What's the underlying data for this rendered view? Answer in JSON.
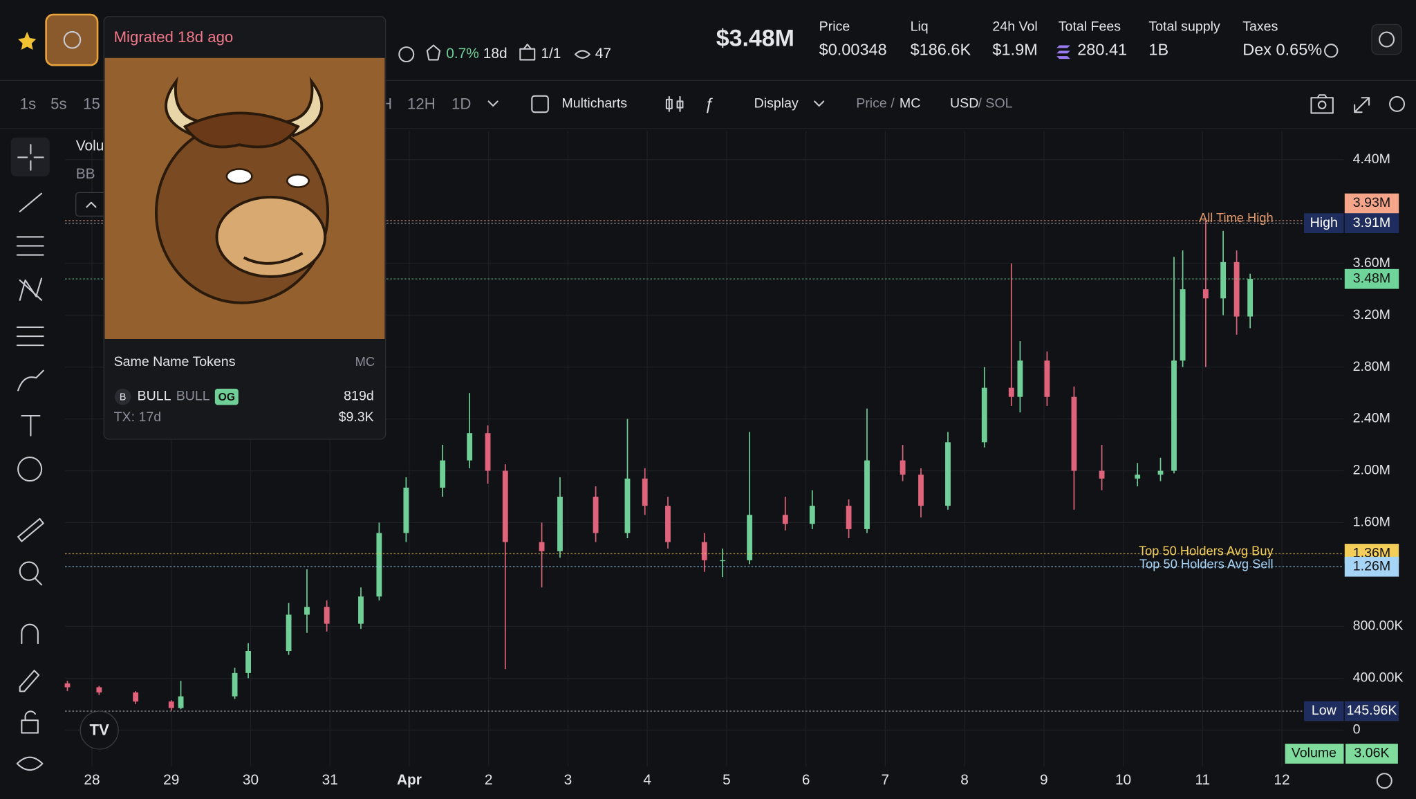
{
  "header": {
    "market_cap": "$3.48M",
    "stats": [
      {
        "label": "Price",
        "value": "$0.00348"
      },
      {
        "label": "Liq",
        "value": "$186.6K"
      },
      {
        "label": "24h Vol",
        "value": "$1.9M"
      },
      {
        "label": "Total Fees",
        "value": "280.41"
      },
      {
        "label": "Total supply",
        "value": "1B"
      },
      {
        "label": "Taxes",
        "value": "Dex 0.65%"
      }
    ],
    "token_stats": {
      "top_holders": "0.7%",
      "age": "18d",
      "ratio": "1/1",
      "watchers": "47"
    }
  },
  "toolbar": {
    "intervals": [
      "1s",
      "5s",
      "15",
      "H",
      "12H",
      "1D"
    ],
    "multicharts": "Multicharts",
    "display": "Display",
    "price": "Price /",
    "mc": "MC",
    "usd": "USD",
    "sol": "/ SOL"
  },
  "legend": [
    "Volu",
    "BB"
  ],
  "popup": {
    "title": "Migrated 18d ago",
    "section": "Same Name Tokens",
    "column": "MC",
    "token": {
      "avatar": "B",
      "symbol": "BULL",
      "name": "BULL",
      "badge": "OG",
      "age": "819d",
      "tx": "TX: 17d",
      "mc": "$9.3K"
    }
  },
  "volume_badge": {
    "label": "Volume",
    "value": "3.06K"
  },
  "chart_data": {
    "type": "candlestick",
    "xlim": [
      -0.34,
      15.78
    ],
    "xticks": [
      {
        "value": 0,
        "label": "28"
      },
      {
        "value": 1,
        "label": "29"
      },
      {
        "value": 2,
        "label": "30"
      },
      {
        "value": 3,
        "label": "31"
      },
      {
        "value": 4,
        "label": "Apr"
      },
      {
        "value": 5,
        "label": "2"
      },
      {
        "value": 6,
        "label": "3"
      },
      {
        "value": 7,
        "label": "4"
      },
      {
        "value": 8,
        "label": "5"
      },
      {
        "value": 9,
        "label": "6"
      },
      {
        "value": 10,
        "label": "7"
      },
      {
        "value": 11,
        "label": "8"
      },
      {
        "value": 12,
        "label": "9"
      },
      {
        "value": 13,
        "label": "10"
      },
      {
        "value": 14,
        "label": "11"
      },
      {
        "value": 15,
        "label": "12"
      }
    ],
    "ylim": [
      -0.28,
      4.62
    ],
    "yticks": [
      {
        "value": 4.4,
        "label": "4.40M"
      },
      {
        "value": 3.6,
        "label": "3.60M"
      },
      {
        "value": 3.2,
        "label": "3.20M"
      },
      {
        "value": 2.8,
        "label": "2.80M"
      },
      {
        "value": 2.4,
        "label": "2.40M"
      },
      {
        "value": 2.0,
        "label": "2.00M"
      },
      {
        "value": 1.6,
        "label": "1.60M"
      },
      {
        "value": 0.8,
        "label": "800.00K"
      },
      {
        "value": 0.4,
        "label": "400.00K"
      },
      0
    ],
    "grid": true,
    "up_color": "#6fcf97",
    "down_color": "#e0637c",
    "x": [
      -0.31,
      0.09,
      0.55,
      1.0,
      1.12,
      1.8,
      1.97,
      2.48,
      2.71,
      2.96,
      3.39,
      3.62,
      3.96,
      4.42,
      4.76,
      4.99,
      5.21,
      5.67,
      5.9,
      6.35,
      6.75,
      6.97,
      7.26,
      7.72,
      7.95,
      8.29,
      8.74,
      9.08,
      9.54,
      9.77,
      10.22,
      10.45,
      10.79,
      11.25,
      11.59,
      11.7,
      12.04,
      12.38,
      12.73,
      13.18,
      13.47,
      13.64,
      13.75,
      14.04,
      14.26,
      14.43,
      14.6
    ],
    "open": [
      0.36,
      0.33,
      0.29,
      0.22,
      0.17,
      0.26,
      0.44,
      0.61,
      0.89,
      0.95,
      0.82,
      1.03,
      1.52,
      1.87,
      2.08,
      2.29,
      2.0,
      1.45,
      1.38,
      1.8,
      1.52,
      1.94,
      1.73,
      1.45,
      1.31,
      1.31,
      1.66,
      1.59,
      1.73,
      1.55,
      2.08,
      1.97,
      1.73,
      2.22,
      2.64,
      2.57,
      2.85,
      2.57,
      2.0,
      1.94,
      1.97,
      2.0,
      2.85,
      3.4,
      3.33,
      3.61,
      3.19
    ],
    "high": [
      0.38,
      0.34,
      0.3,
      0.23,
      0.38,
      0.48,
      0.67,
      0.98,
      1.24,
      1.0,
      1.1,
      1.6,
      1.95,
      2.2,
      2.6,
      2.35,
      2.05,
      1.6,
      1.95,
      1.88,
      2.4,
      2.02,
      1.8,
      1.52,
      1.4,
      2.3,
      1.8,
      1.85,
      1.78,
      2.48,
      2.2,
      2.02,
      2.3,
      2.8,
      3.6,
      3.0,
      2.92,
      2.65,
      2.2,
      2.06,
      2.1,
      3.65,
      3.7,
      3.93,
      3.85,
      3.7,
      3.52
    ],
    "low": [
      0.3,
      0.27,
      0.2,
      0.15,
      0.16,
      0.24,
      0.4,
      0.58,
      0.75,
      0.76,
      0.78,
      1.0,
      1.45,
      1.8,
      2.02,
      1.9,
      0.47,
      1.1,
      1.33,
      1.45,
      1.48,
      1.66,
      1.4,
      1.22,
      1.18,
      1.28,
      1.54,
      1.55,
      1.48,
      1.52,
      1.92,
      1.64,
      1.7,
      2.18,
      2.5,
      2.45,
      2.5,
      1.7,
      1.85,
      1.88,
      1.92,
      1.98,
      2.8,
      2.8,
      3.2,
      3.05,
      3.1
    ],
    "close": [
      0.33,
      0.29,
      0.22,
      0.17,
      0.26,
      0.44,
      0.61,
      0.89,
      0.95,
      0.82,
      1.03,
      1.52,
      1.87,
      2.08,
      2.29,
      2.0,
      1.45,
      1.38,
      1.8,
      1.52,
      1.94,
      1.73,
      1.45,
      1.31,
      1.31,
      1.66,
      1.59,
      1.73,
      1.55,
      2.08,
      1.97,
      1.73,
      2.22,
      2.64,
      2.57,
      2.85,
      2.57,
      2.0,
      1.94,
      1.97,
      2.0,
      2.85,
      3.4,
      3.33,
      3.61,
      3.19,
      3.48
    ],
    "price_lines": [
      {
        "value": 3.93,
        "label": "3.93M",
        "color": "#f4a58a",
        "annotation": "All Time High"
      },
      {
        "value": 3.91,
        "label": "3.91M",
        "tag": "High",
        "color": "#1f2d5e"
      },
      {
        "value": 3.48,
        "label": "3.48M",
        "color": "#6fd49a"
      },
      {
        "value": 1.36,
        "label": "1.36M",
        "color": "#f3cf5a",
        "annotation": "Top 50 Holders Avg Buy"
      },
      {
        "value": 1.26,
        "label": "1.26M",
        "color": "#a6d4f7",
        "annotation": "Top 50 Holders Avg Sell"
      },
      {
        "value": 0.14596,
        "label": "145.96K",
        "tag": "Low",
        "color": "#1f2d5e"
      }
    ]
  }
}
